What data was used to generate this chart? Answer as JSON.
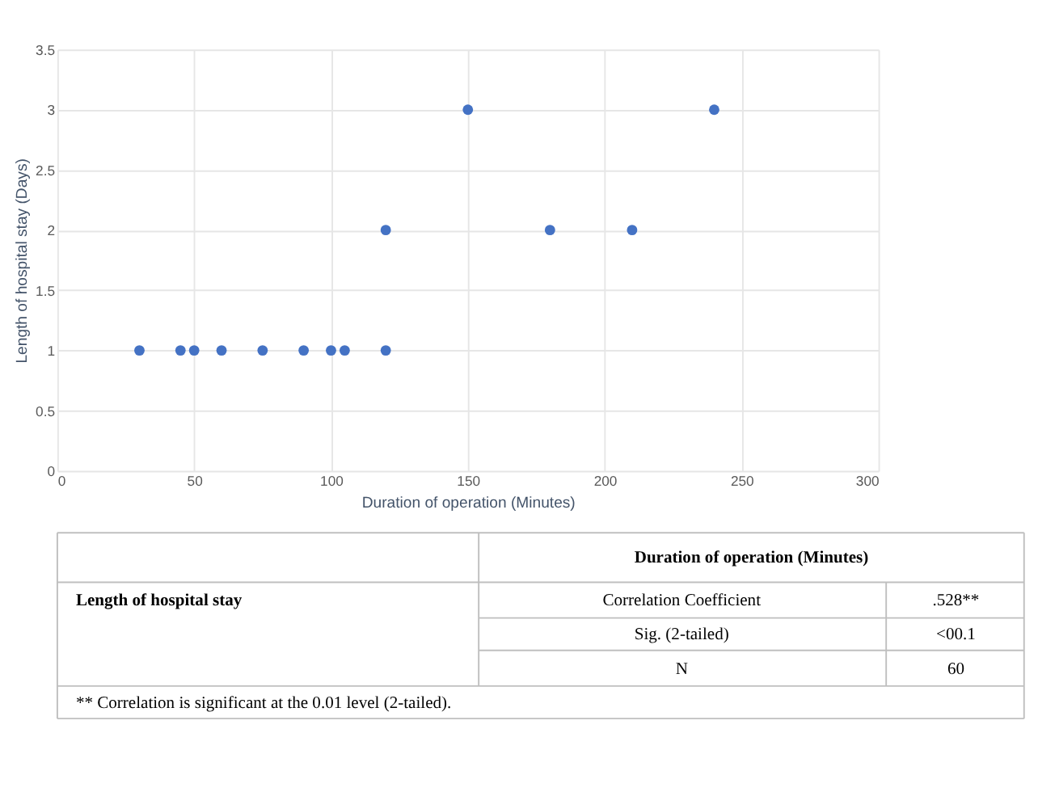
{
  "chart_data": {
    "type": "scatter",
    "xlabel": "Duration of operation (Minutes)",
    "ylabel": "Length of hospital stay (Days)",
    "x": [
      30,
      45,
      50,
      60,
      75,
      90,
      100,
      105,
      120,
      120,
      150,
      180,
      210,
      240
    ],
    "series": [
      {
        "color": "#4472c4",
        "values": [
          1,
          1,
          1,
          1,
          1,
          1,
          1,
          1,
          1,
          2,
          3,
          2,
          2,
          3
        ]
      }
    ],
    "xlim": [
      0,
      300
    ],
    "xticks": [
      0,
      50,
      100,
      150,
      200,
      250,
      300
    ],
    "ylim": [
      0,
      3.5
    ],
    "yticks": [
      0,
      0.5,
      1,
      1.5,
      2,
      2.5,
      3,
      3.5
    ],
    "grid": true,
    "marker": "circle",
    "legend": false,
    "annotations": [
      "Duration of operation (Minutes)",
      "Length of hospital stay",
      "Correlation Coefficient",
      ".528**",
      "Sig. (2-tailed)",
      "<00.1",
      "N",
      "60",
      "** Correlation is significant at the 0.01 level (2-tailed)."
    ]
  }
}
